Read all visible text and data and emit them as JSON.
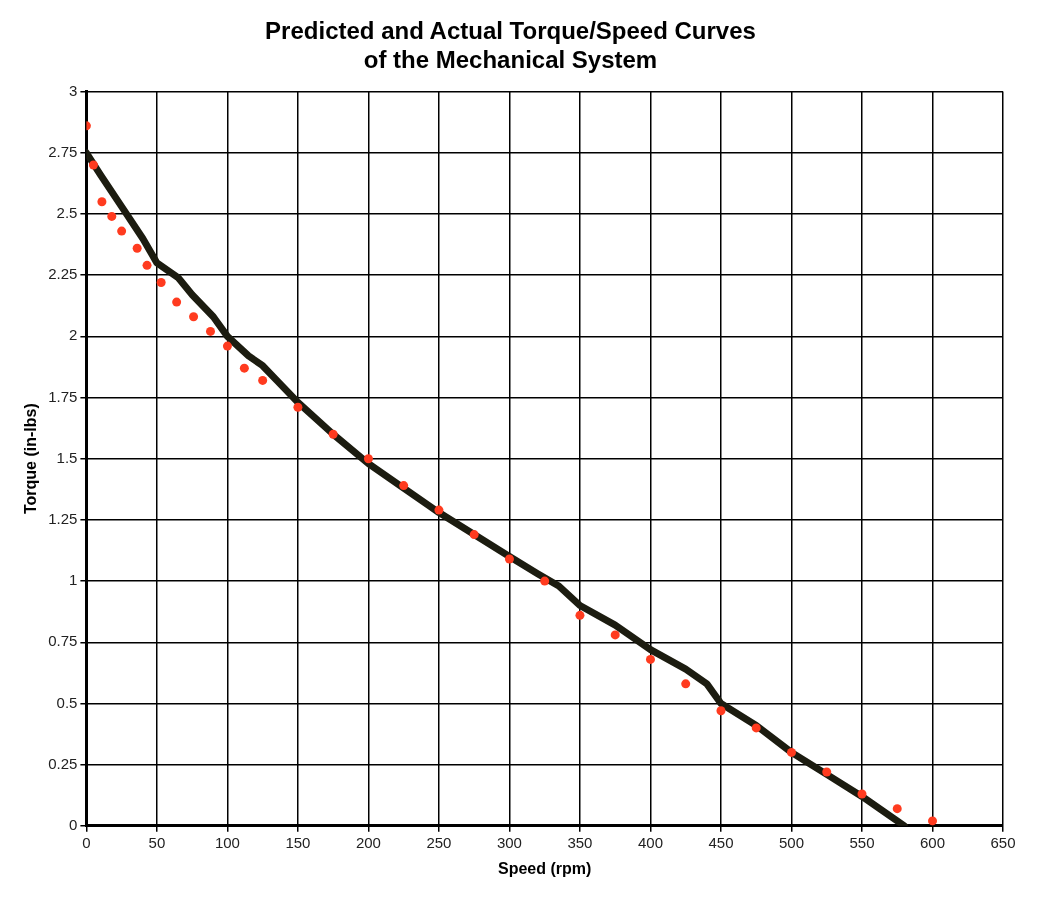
{
  "chart_data": {
    "type": "line",
    "title": [
      "Predicted and Actual Torque/Speed Curves",
      "of the Mechanical System"
    ],
    "xlabel": "Speed (rpm)",
    "ylabel": "Torque (in-lbs)",
    "xlim": [
      0,
      650
    ],
    "xticks": [
      0,
      50,
      100,
      150,
      200,
      250,
      300,
      350,
      400,
      450,
      500,
      550,
      600,
      650
    ],
    "ylim": [
      0,
      3
    ],
    "yticks": [
      0,
      0.25,
      0.5,
      0.75,
      1,
      1.25,
      1.5,
      1.75,
      2,
      2.25,
      2.5,
      2.75,
      3
    ],
    "grid": true,
    "legend": false,
    "series": [
      {
        "marker": "none",
        "color": "#1c1c10",
        "x": [
          0,
          10,
          25,
          40,
          50,
          65,
          75,
          90,
          100,
          115,
          125,
          135,
          150,
          175,
          200,
          225,
          250,
          275,
          300,
          320,
          335,
          350,
          375,
          400,
          425,
          440,
          450,
          475,
          500,
          525,
          550,
          565,
          580
        ],
        "values": [
          2.75,
          2.66,
          2.53,
          2.4,
          2.3,
          2.24,
          2.17,
          2.08,
          2.0,
          1.92,
          1.88,
          1.82,
          1.73,
          1.6,
          1.48,
          1.38,
          1.28,
          1.19,
          1.1,
          1.03,
          0.98,
          0.9,
          0.82,
          0.72,
          0.64,
          0.58,
          0.5,
          0.41,
          0.3,
          0.21,
          0.12,
          0.06,
          0
        ]
      },
      {
        "type": "scatter",
        "marker": "circle",
        "color": "#ff3b1f",
        "x": [
          0,
          5,
          11,
          18,
          25,
          36,
          43,
          53,
          64,
          76,
          88,
          100,
          112,
          125,
          150,
          175,
          200,
          225,
          250,
          275,
          300,
          325,
          350,
          375,
          400,
          425,
          450,
          475,
          500,
          525,
          550,
          575,
          600
        ],
        "values": [
          2.86,
          2.7,
          2.55,
          2.49,
          2.43,
          2.36,
          2.29,
          2.22,
          2.14,
          2.08,
          2.02,
          1.96,
          1.87,
          1.82,
          1.71,
          1.6,
          1.5,
          1.39,
          1.29,
          1.19,
          1.09,
          1.0,
          0.86,
          0.78,
          0.68,
          0.58,
          0.47,
          0.4,
          0.3,
          0.22,
          0.13,
          0.07,
          0.02
        ]
      }
    ]
  }
}
